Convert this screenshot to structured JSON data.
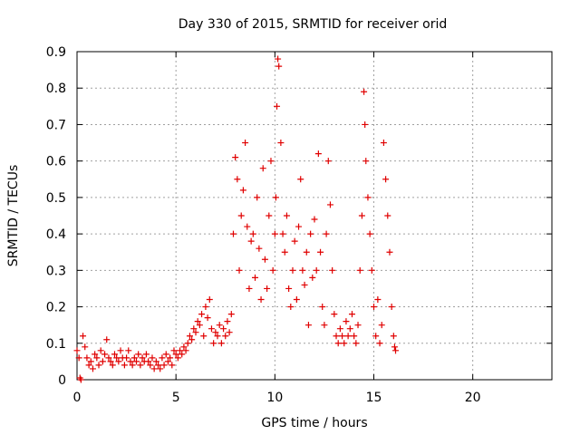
{
  "chart_data": {
    "type": "scatter",
    "title": "Day 330 of 2015, SRMTID for receiver orid",
    "xlabel": "GPS time / hours",
    "ylabel": "SRMTID / TECUs",
    "xlim": [
      0,
      24
    ],
    "ylim": [
      0,
      0.9
    ],
    "x_ticks": [
      0,
      5,
      10,
      15,
      20
    ],
    "y_ticks": [
      0,
      0.1,
      0.2,
      0.3,
      0.4,
      0.5,
      0.6,
      0.7,
      0.8,
      0.9
    ],
    "grid": true,
    "marker": "+",
    "series": [
      {
        "name": "SRMTID",
        "color": "#e00000",
        "points": [
          [
            0.0,
            0.08
          ],
          [
            0.1,
            0.06
          ],
          [
            0.15,
            0.005
          ],
          [
            0.2,
            0.0
          ],
          [
            0.3,
            0.12
          ],
          [
            0.4,
            0.09
          ],
          [
            0.5,
            0.06
          ],
          [
            0.6,
            0.04
          ],
          [
            0.7,
            0.05
          ],
          [
            0.8,
            0.03
          ],
          [
            0.9,
            0.07
          ],
          [
            1.0,
            0.06
          ],
          [
            1.1,
            0.04
          ],
          [
            1.2,
            0.08
          ],
          [
            1.3,
            0.05
          ],
          [
            1.4,
            0.07
          ],
          [
            1.5,
            0.11
          ],
          [
            1.6,
            0.06
          ],
          [
            1.7,
            0.05
          ],
          [
            1.8,
            0.04
          ],
          [
            1.9,
            0.07
          ],
          [
            2.0,
            0.06
          ],
          [
            2.1,
            0.05
          ],
          [
            2.2,
            0.08
          ],
          [
            2.3,
            0.06
          ],
          [
            2.4,
            0.04
          ],
          [
            2.5,
            0.06
          ],
          [
            2.6,
            0.08
          ],
          [
            2.7,
            0.05
          ],
          [
            2.8,
            0.04
          ],
          [
            2.9,
            0.06
          ],
          [
            3.0,
            0.05
          ],
          [
            3.1,
            0.07
          ],
          [
            3.2,
            0.04
          ],
          [
            3.3,
            0.06
          ],
          [
            3.4,
            0.05
          ],
          [
            3.5,
            0.07
          ],
          [
            3.6,
            0.05
          ],
          [
            3.7,
            0.04
          ],
          [
            3.8,
            0.06
          ],
          [
            3.9,
            0.03
          ],
          [
            4.0,
            0.05
          ],
          [
            4.1,
            0.04
          ],
          [
            4.2,
            0.03
          ],
          [
            4.3,
            0.06
          ],
          [
            4.4,
            0.04
          ],
          [
            4.5,
            0.07
          ],
          [
            4.6,
            0.05
          ],
          [
            4.7,
            0.06
          ],
          [
            4.8,
            0.04
          ],
          [
            4.9,
            0.08
          ],
          [
            5.0,
            0.07
          ],
          [
            5.1,
            0.06
          ],
          [
            5.2,
            0.08
          ],
          [
            5.3,
            0.07
          ],
          [
            5.4,
            0.09
          ],
          [
            5.5,
            0.08
          ],
          [
            5.6,
            0.1
          ],
          [
            5.7,
            0.12
          ],
          [
            5.8,
            0.11
          ],
          [
            5.9,
            0.14
          ],
          [
            6.0,
            0.13
          ],
          [
            6.1,
            0.16
          ],
          [
            6.2,
            0.15
          ],
          [
            6.3,
            0.18
          ],
          [
            6.4,
            0.12
          ],
          [
            6.5,
            0.2
          ],
          [
            6.6,
            0.17
          ],
          [
            6.7,
            0.22
          ],
          [
            6.8,
            0.14
          ],
          [
            6.9,
            0.1
          ],
          [
            7.0,
            0.13
          ],
          [
            7.1,
            0.12
          ],
          [
            7.2,
            0.15
          ],
          [
            7.3,
            0.1
          ],
          [
            7.4,
            0.14
          ],
          [
            7.5,
            0.12
          ],
          [
            7.6,
            0.16
          ],
          [
            7.7,
            0.13
          ],
          [
            7.8,
            0.18
          ],
          [
            7.9,
            0.4
          ],
          [
            8.0,
            0.61
          ],
          [
            8.1,
            0.55
          ],
          [
            8.2,
            0.3
          ],
          [
            8.3,
            0.45
          ],
          [
            8.4,
            0.52
          ],
          [
            8.5,
            0.65
          ],
          [
            8.6,
            0.42
          ],
          [
            8.7,
            0.25
          ],
          [
            8.8,
            0.38
          ],
          [
            8.9,
            0.4
          ],
          [
            9.0,
            0.28
          ],
          [
            9.1,
            0.5
          ],
          [
            9.2,
            0.36
          ],
          [
            9.3,
            0.22
          ],
          [
            9.4,
            0.58
          ],
          [
            9.5,
            0.33
          ],
          [
            9.6,
            0.25
          ],
          [
            9.7,
            0.45
          ],
          [
            9.8,
            0.6
          ],
          [
            9.9,
            0.3
          ],
          [
            10.0,
            0.4
          ],
          [
            10.05,
            0.5
          ],
          [
            10.1,
            0.75
          ],
          [
            10.15,
            0.88
          ],
          [
            10.2,
            0.86
          ],
          [
            10.3,
            0.65
          ],
          [
            10.4,
            0.4
          ],
          [
            10.5,
            0.35
          ],
          [
            10.6,
            0.45
          ],
          [
            10.7,
            0.25
          ],
          [
            10.8,
            0.2
          ],
          [
            10.9,
            0.3
          ],
          [
            11.0,
            0.38
          ],
          [
            11.1,
            0.22
          ],
          [
            11.2,
            0.42
          ],
          [
            11.3,
            0.55
          ],
          [
            11.4,
            0.3
          ],
          [
            11.5,
            0.26
          ],
          [
            11.6,
            0.35
          ],
          [
            11.7,
            0.15
          ],
          [
            11.8,
            0.4
          ],
          [
            11.9,
            0.28
          ],
          [
            12.0,
            0.44
          ],
          [
            12.1,
            0.3
          ],
          [
            12.2,
            0.62
          ],
          [
            12.3,
            0.35
          ],
          [
            12.4,
            0.2
          ],
          [
            12.5,
            0.15
          ],
          [
            12.6,
            0.4
          ],
          [
            12.7,
            0.6
          ],
          [
            12.8,
            0.48
          ],
          [
            12.9,
            0.3
          ],
          [
            13.0,
            0.18
          ],
          [
            13.1,
            0.12
          ],
          [
            13.2,
            0.1
          ],
          [
            13.3,
            0.14
          ],
          [
            13.4,
            0.12
          ],
          [
            13.5,
            0.1
          ],
          [
            13.6,
            0.16
          ],
          [
            13.7,
            0.12
          ],
          [
            13.8,
            0.14
          ],
          [
            13.9,
            0.18
          ],
          [
            14.0,
            0.12
          ],
          [
            14.1,
            0.1
          ],
          [
            14.2,
            0.15
          ],
          [
            14.3,
            0.3
          ],
          [
            14.4,
            0.45
          ],
          [
            14.5,
            0.79
          ],
          [
            14.55,
            0.7
          ],
          [
            14.6,
            0.6
          ],
          [
            14.7,
            0.5
          ],
          [
            14.8,
            0.4
          ],
          [
            14.9,
            0.3
          ],
          [
            15.0,
            0.2
          ],
          [
            15.1,
            0.12
          ],
          [
            15.2,
            0.22
          ],
          [
            15.3,
            0.1
          ],
          [
            15.4,
            0.15
          ],
          [
            15.5,
            0.65
          ],
          [
            15.6,
            0.55
          ],
          [
            15.7,
            0.45
          ],
          [
            15.8,
            0.35
          ],
          [
            15.9,
            0.2
          ],
          [
            16.0,
            0.12
          ],
          [
            16.05,
            0.09
          ],
          [
            16.1,
            0.08
          ]
        ]
      }
    ]
  }
}
